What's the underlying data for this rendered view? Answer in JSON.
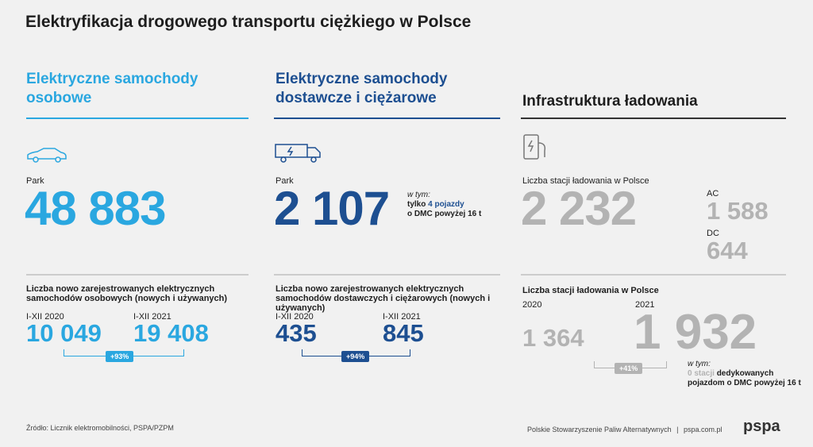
{
  "title": "Elektryfikacja drogowego transportu ciężkiego w Polsce",
  "columns": [
    {
      "heading": "Elektryczne samochody osobowe",
      "park_label": "Park",
      "park_value": "48 883",
      "registrations_label": "Liczba nowo zarejestrowanych elektrycznych samochodów osobowych (nowych i używanych)",
      "periods": [
        {
          "label": "I-XII 2020",
          "value": "10 049"
        },
        {
          "label": "I-XII 2021",
          "value": "19 408"
        }
      ],
      "growth": "+93%"
    },
    {
      "heading": "Elektryczne samochody dostawcze i ciężarowe",
      "park_label": "Park",
      "park_value": "2 107",
      "park_note": {
        "intro": "w tym:",
        "prefix": "tylko",
        "highlight": "4 pojazdy",
        "suffix": "o DMC powyżej 16 t"
      },
      "registrations_label": "Liczba nowo zarejestrowanych elektrycznych samochodów dostawczych i ciężarowych (nowych i używanych)",
      "periods": [
        {
          "label": "I-XII 2020",
          "value": "435"
        },
        {
          "label": "I-XII 2021",
          "value": "845"
        }
      ],
      "growth": "+94%"
    },
    {
      "heading": "Infrastruktura ładowania",
      "park_label": "Liczba stacji ładowania w Polsce",
      "park_value": "2 232",
      "split": [
        {
          "label": "AC",
          "value": "1 588"
        },
        {
          "label": "DC",
          "value": "644"
        }
      ],
      "registrations_label": "Liczba stacji ładowania w Polsce",
      "periods": [
        {
          "label": "2020",
          "value": "1 364"
        },
        {
          "label": "2021",
          "value": "1 932"
        }
      ],
      "growth": "+41%",
      "note": {
        "intro": "w tym:",
        "highlight": "0 stacji",
        "suffix_1": "dedykowanych",
        "suffix_2": "pojazdom o DMC powyżej 16 t"
      }
    }
  ],
  "footer": {
    "source": "Źródło: Licznik elektromobilności, PSPA/PZPM",
    "org": "Polskie Stowarzyszenie Paliw Alternatywnych",
    "separator": "|",
    "url": "pspa.com.pl",
    "logo": "pspa"
  }
}
